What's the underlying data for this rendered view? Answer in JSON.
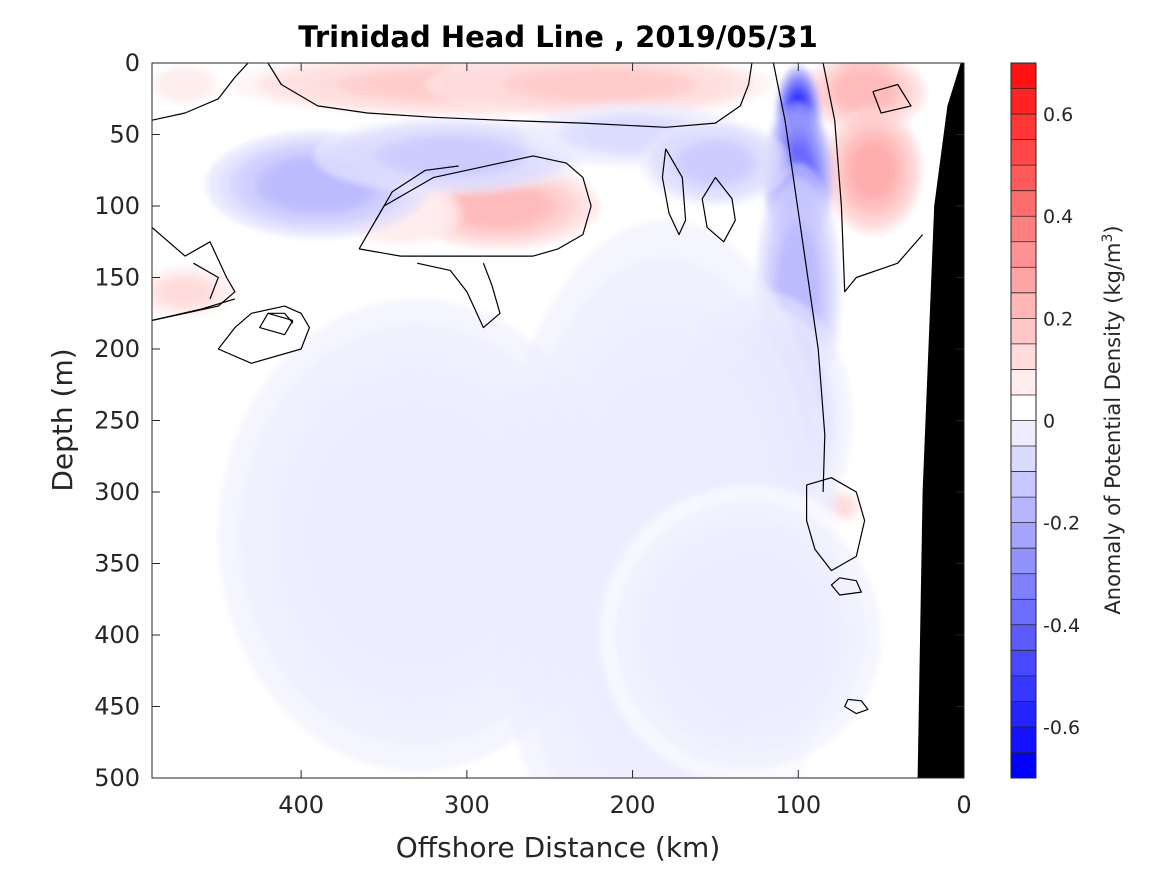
{
  "chart_data": {
    "type": "heatmap",
    "subtype": "filled-contour section",
    "title": "Trinidad Head Line , 2019/05/31",
    "xlabel": "Offshore Distance (km)",
    "ylabel": "Depth (m)",
    "xlim": [
      490,
      0
    ],
    "ylim": [
      0,
      500
    ],
    "x_reversed": true,
    "y_reversed": true,
    "x_ticks": [
      400,
      300,
      200,
      100,
      0
    ],
    "y_ticks": [
      0,
      50,
      100,
      150,
      200,
      250,
      300,
      350,
      400,
      450,
      500
    ],
    "colorbar": {
      "label_main": "Anomaly of Potential Density (kg/m",
      "label_sup": "3",
      "label_end": ")",
      "range": [
        -0.7,
        0.7
      ],
      "step": 0.05,
      "ticks": [
        -0.6,
        -0.4,
        -0.2,
        0,
        0.2,
        0.4,
        0.6
      ],
      "colormap": "blue-white-red",
      "neg_color": "#0000ff",
      "pos_color": "#ff0000"
    },
    "zero_contour_color": "#000000",
    "bathymetry_color": "#000000",
    "anomaly_features": [
      {
        "desc": "surface positive band",
        "x": 300,
        "depth": 15,
        "value": 0.15,
        "sx": 95,
        "sy": 15
      },
      {
        "desc": "surface positive band",
        "x": 220,
        "depth": 15,
        "value": 0.15,
        "sx": 70,
        "sy": 15
      },
      {
        "desc": "nearshore surface maximum",
        "x": 60,
        "depth": 5,
        "value": 0.5,
        "sx": 12,
        "sy": 10
      },
      {
        "desc": "nearshore surface positive",
        "x": 60,
        "depth": 20,
        "value": 0.2,
        "sx": 25,
        "sy": 18
      },
      {
        "desc": "positive lens",
        "x": 55,
        "depth": 75,
        "value": 0.25,
        "sx": 20,
        "sy": 30
      },
      {
        "desc": "positive lens",
        "x": 280,
        "depth": 100,
        "value": 0.2,
        "sx": 40,
        "sy": 20
      },
      {
        "desc": "positive lens",
        "x": 340,
        "depth": 105,
        "value": 0.07,
        "sx": 25,
        "sy": 15
      },
      {
        "desc": "positive patch",
        "x": 470,
        "depth": 160,
        "value": 0.1,
        "sx": 20,
        "sy": 12
      },
      {
        "desc": "positive patch",
        "x": 470,
        "depth": 15,
        "value": 0.05,
        "sx": 15,
        "sy": 10
      },
      {
        "desc": "small positive patch",
        "x": 75,
        "depth": 310,
        "value": 0.1,
        "sx": 9,
        "sy": 8
      },
      {
        "desc": "negative core",
        "x": 100,
        "depth": 35,
        "value": -0.6,
        "sx": 9,
        "sy": 22
      },
      {
        "desc": "negative core",
        "x": 100,
        "depth": 80,
        "value": -0.45,
        "sx": 14,
        "sy": 35
      },
      {
        "desc": "negative tongue",
        "x": 100,
        "depth": 160,
        "value": -0.22,
        "sx": 17,
        "sy": 60
      },
      {
        "desc": "negative tongue",
        "x": 120,
        "depth": 250,
        "value": -0.12,
        "sx": 35,
        "sy": 60
      },
      {
        "desc": "negative band",
        "x": 390,
        "depth": 85,
        "value": -0.22,
        "sx": 45,
        "sy": 25
      },
      {
        "desc": "negative band",
        "x": 310,
        "depth": 65,
        "value": -0.15,
        "sx": 55,
        "sy": 18
      },
      {
        "desc": "negative band",
        "x": 200,
        "depth": 50,
        "value": -0.1,
        "sx": 45,
        "sy": 15
      },
      {
        "desc": "negative band",
        "x": 150,
        "depth": 70,
        "value": -0.15,
        "sx": 30,
        "sy": 20
      },
      {
        "desc": "deep negative region",
        "x": 330,
        "depth": 330,
        "value": -0.07,
        "sx": 80,
        "sy": 110
      },
      {
        "desc": "deep negative region",
        "x": 180,
        "depth": 350,
        "value": -0.07,
        "sx": 70,
        "sy": 160
      },
      {
        "desc": "deep negative region",
        "x": 130,
        "depth": 400,
        "value": -0.06,
        "sx": 60,
        "sy": 70
      }
    ],
    "zero_contours": [
      [
        [
          490,
          40
        ],
        [
          470,
          35
        ],
        [
          450,
          25
        ],
        [
          440,
          10
        ],
        [
          432,
          0
        ]
      ],
      [
        [
          420,
          0
        ],
        [
          412,
          15
        ],
        [
          390,
          30
        ],
        [
          360,
          35
        ],
        [
          320,
          38
        ],
        [
          280,
          40
        ],
        [
          230,
          42
        ],
        [
          180,
          45
        ],
        [
          150,
          42
        ],
        [
          135,
          30
        ],
        [
          130,
          15
        ],
        [
          128,
          0
        ]
      ],
      [
        [
          115,
          0
        ],
        [
          108,
          40
        ],
        [
          98,
          120
        ],
        [
          88,
          200
        ],
        [
          84,
          260
        ],
        [
          85,
          300
        ]
      ],
      [
        [
          85,
          0
        ],
        [
          78,
          40
        ],
        [
          74,
          100
        ],
        [
          72,
          160
        ],
        [
          65,
          150
        ],
        [
          40,
          140
        ],
        [
          25,
          120
        ]
      ],
      [
        [
          55,
          20
        ],
        [
          40,
          15
        ],
        [
          32,
          30
        ],
        [
          50,
          35
        ],
        [
          55,
          20
        ]
      ],
      [
        [
          490,
          115
        ],
        [
          470,
          135
        ],
        [
          455,
          125
        ],
        [
          445,
          150
        ],
        [
          440,
          160
        ],
        [
          450,
          170
        ],
        [
          470,
          175
        ],
        [
          490,
          180
        ]
      ],
      [
        [
          490,
          180
        ],
        [
          460,
          172
        ],
        [
          440,
          165
        ]
      ],
      [
        [
          365,
          130
        ],
        [
          360,
          120
        ],
        [
          350,
          100
        ],
        [
          320,
          80
        ],
        [
          280,
          70
        ],
        [
          260,
          65
        ],
        [
          240,
          70
        ],
        [
          230,
          80
        ],
        [
          225,
          100
        ],
        [
          230,
          120
        ],
        [
          245,
          130
        ],
        [
          260,
          135
        ],
        [
          280,
          135
        ],
        [
          310,
          135
        ],
        [
          340,
          135
        ],
        [
          365,
          130
        ]
      ],
      [
        [
          355,
          110
        ],
        [
          345,
          90
        ],
        [
          325,
          75
        ],
        [
          305,
          72
        ]
      ],
      [
        [
          290,
          140
        ],
        [
          285,
          155
        ],
        [
          280,
          175
        ],
        [
          290,
          185
        ],
        [
          300,
          160
        ],
        [
          310,
          145
        ],
        [
          330,
          140
        ]
      ],
      [
        [
          430,
          175
        ],
        [
          410,
          170
        ],
        [
          400,
          175
        ],
        [
          395,
          185
        ],
        [
          400,
          200
        ],
        [
          430,
          210
        ],
        [
          450,
          200
        ],
        [
          440,
          185
        ],
        [
          430,
          175
        ]
      ],
      [
        [
          420,
          175
        ],
        [
          410,
          175
        ],
        [
          405,
          182
        ]
      ],
      [
        [
          180,
          60
        ],
        [
          170,
          80
        ],
        [
          168,
          110
        ],
        [
          172,
          120
        ],
        [
          178,
          105
        ],
        [
          182,
          80
        ],
        [
          180,
          60
        ]
      ],
      [
        [
          150,
          80
        ],
        [
          140,
          95
        ],
        [
          138,
          110
        ],
        [
          145,
          125
        ],
        [
          155,
          115
        ],
        [
          158,
          95
        ],
        [
          150,
          80
        ]
      ],
      [
        [
          95,
          295
        ],
        [
          80,
          290
        ],
        [
          65,
          300
        ],
        [
          60,
          320
        ],
        [
          65,
          345
        ],
        [
          80,
          355
        ],
        [
          90,
          340
        ],
        [
          95,
          320
        ],
        [
          95,
          295
        ]
      ],
      [
        [
          75,
          360
        ],
        [
          65,
          362
        ],
        [
          62,
          370
        ],
        [
          75,
          372
        ],
        [
          80,
          365
        ],
        [
          75,
          360
        ]
      ],
      [
        [
          70,
          445
        ],
        [
          62,
          446
        ],
        [
          58,
          452
        ],
        [
          65,
          455
        ],
        [
          72,
          450
        ],
        [
          70,
          445
        ]
      ],
      [
        [
          465,
          140
        ],
        [
          450,
          150
        ],
        [
          455,
          165
        ]
      ],
      [
        [
          405,
          180
        ],
        [
          420,
          175
        ],
        [
          425,
          185
        ],
        [
          410,
          190
        ],
        [
          405,
          180
        ]
      ]
    ]
  }
}
